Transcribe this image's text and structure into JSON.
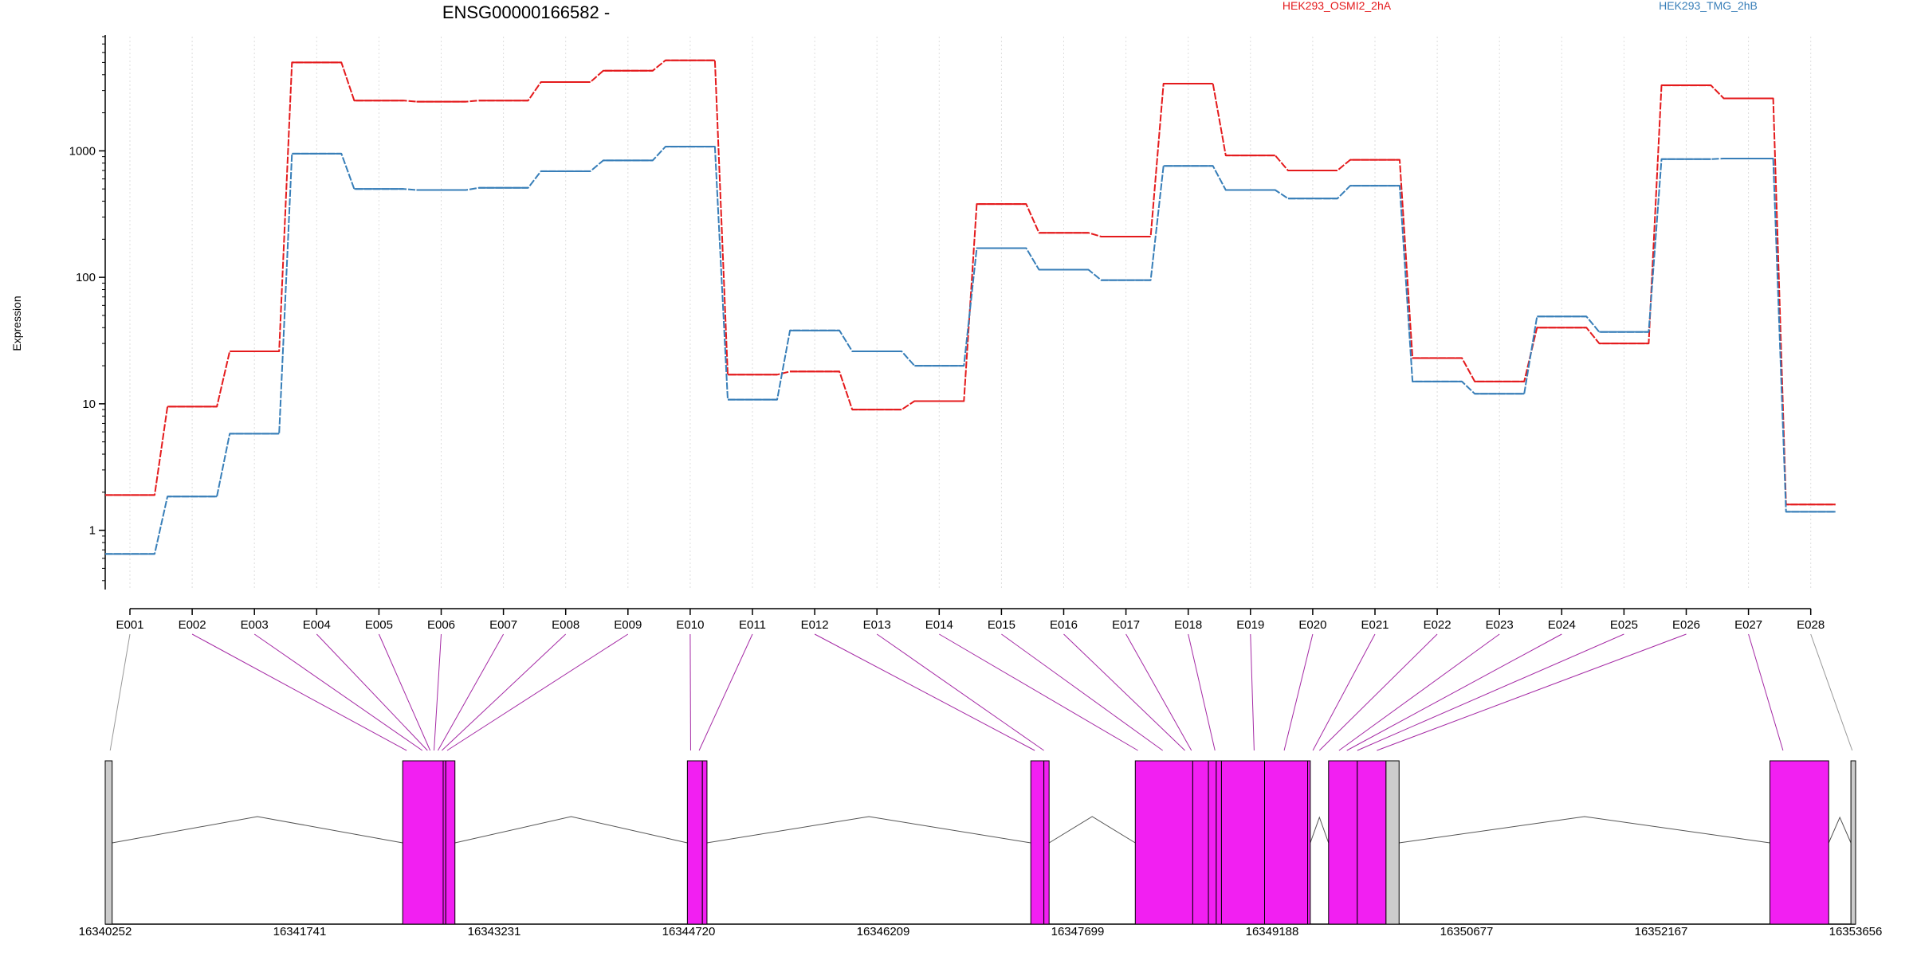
{
  "title": "ENSG00000166582 -",
  "legend": [
    {
      "label": "HEK293_OSMI2_2hA",
      "color": "#e41a1c"
    },
    {
      "label": "HEK293_TMG_2hB",
      "color": "#377eb8"
    }
  ],
  "chart_data": {
    "type": "line",
    "title": "ENSG00000166582 -",
    "ylabel": "Expression",
    "yscale": "log",
    "ylim": [
      0.35,
      8000
    ],
    "yticks": [
      1,
      10,
      100,
      1000
    ],
    "ytick_labels": [
      "1",
      "10",
      "100",
      "1000"
    ],
    "grid": "vertical dotted at exons",
    "legend_placement": "top",
    "categories": [
      "E001",
      "E002",
      "E003",
      "E004",
      "E005",
      "E006",
      "E007",
      "E008",
      "E009",
      "E010",
      "E011",
      "E012",
      "E013",
      "E014",
      "E015",
      "E016",
      "E017",
      "E018",
      "E019",
      "E020",
      "E021",
      "E022",
      "E023",
      "E024",
      "E025",
      "E026",
      "E027",
      "E028"
    ],
    "series": [
      {
        "name": "HEK293_OSMI2_2hA",
        "color": "#e41a1c",
        "values": [
          1.9,
          9.5,
          26,
          5000,
          2500,
          2450,
          2500,
          3500,
          4300,
          5200,
          17,
          18,
          9,
          10.5,
          380,
          225,
          210,
          3400,
          920,
          700,
          850,
          23,
          15,
          40,
          30,
          3300,
          2600,
          1.6
        ]
      },
      {
        "name": "HEK293_TMG_2hB",
        "color": "#377eb8",
        "values": [
          0.65,
          1.85,
          5.8,
          950,
          500,
          490,
          510,
          690,
          840,
          1080,
          10.8,
          38,
          26,
          20,
          170,
          115,
          95,
          760,
          490,
          420,
          530,
          15,
          12,
          49,
          37,
          860,
          870,
          1.4
        ]
      }
    ],
    "genomic_axis": {
      "ticks": [
        "16340252",
        "16341741",
        "16343231",
        "16344720",
        "16346209",
        "16347699",
        "16349188",
        "16350677",
        "16352167",
        "16353656"
      ],
      "range": [
        16340252,
        16353656
      ]
    },
    "exon_blocks": [
      {
        "start": 16340252,
        "end": 16340305,
        "type": "noncoding"
      },
      {
        "start": 16342530,
        "end": 16342840,
        "type": "coding"
      },
      {
        "start": 16342840,
        "end": 16342860,
        "type": "coding"
      },
      {
        "start": 16342860,
        "end": 16342930,
        "type": "coding"
      },
      {
        "start": 16344710,
        "end": 16344825,
        "type": "coding"
      },
      {
        "start": 16344825,
        "end": 16344860,
        "type": "coding"
      },
      {
        "start": 16347340,
        "end": 16347440,
        "type": "coding"
      },
      {
        "start": 16347440,
        "end": 16347480,
        "type": "coding"
      },
      {
        "start": 16348140,
        "end": 16348580,
        "type": "coding"
      },
      {
        "start": 16348580,
        "end": 16348700,
        "type": "coding"
      },
      {
        "start": 16348700,
        "end": 16348760,
        "type": "coding"
      },
      {
        "start": 16348760,
        "end": 16348800,
        "type": "coding"
      },
      {
        "start": 16348800,
        "end": 16349130,
        "type": "coding"
      },
      {
        "start": 16349130,
        "end": 16349460,
        "type": "coding"
      },
      {
        "start": 16349460,
        "end": 16349480,
        "type": "coding"
      },
      {
        "start": 16349620,
        "end": 16349840,
        "type": "coding"
      },
      {
        "start": 16349840,
        "end": 16350060,
        "type": "coding"
      },
      {
        "start": 16350060,
        "end": 16350160,
        "type": "noncoding"
      },
      {
        "start": 16353000,
        "end": 16353450,
        "type": "coding"
      },
      {
        "start": 16353620,
        "end": 16353656,
        "type": "noncoding"
      }
    ],
    "exon_map_targets": [
      16340290,
      16342560,
      16342680,
      16342720,
      16342740,
      16342770,
      16342800,
      16342830,
      16342870,
      16344735,
      16344800,
      16347370,
      16347440,
      16348160,
      16348350,
      16348520,
      16348570,
      16348750,
      16349050,
      16349280,
      16349500,
      16349550,
      16349700,
      16349760,
      16349840,
      16349990,
      16353100,
      16353630
    ],
    "colors": {
      "coding": "#f21ff2",
      "noncoding": "#cccccc",
      "intron": "#555555",
      "connector_coding": "#a52aa5",
      "connector_noncoding": "#999999"
    }
  }
}
